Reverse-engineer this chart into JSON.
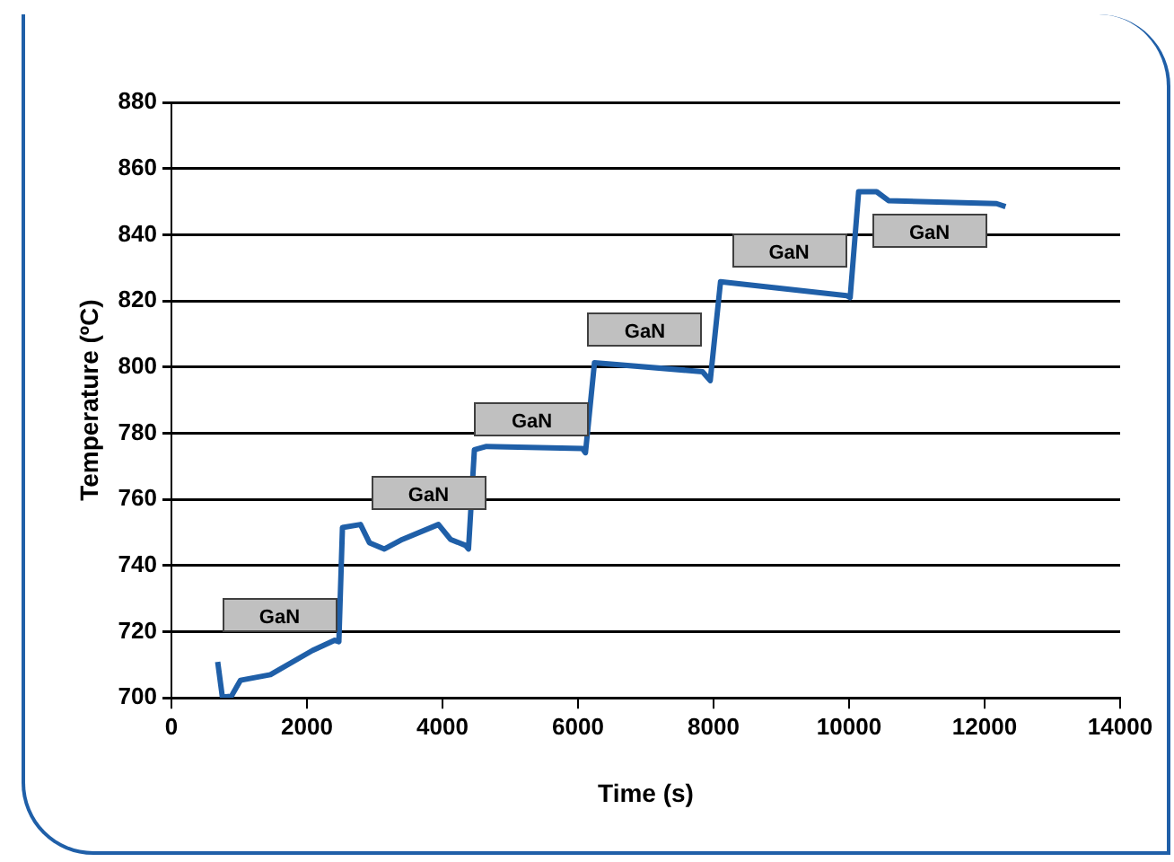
{
  "chart_data": {
    "type": "line",
    "xlabel": "Time (s)",
    "ylabel": "Temperature (ºC)",
    "xlim": [
      0,
      14000
    ],
    "xticks": [
      0,
      2000,
      4000,
      6000,
      8000,
      10000,
      12000,
      14000
    ],
    "ylim": [
      700,
      880
    ],
    "yticks": [
      700,
      720,
      740,
      760,
      780,
      800,
      820,
      840,
      860,
      880
    ],
    "grid": "y",
    "legend": false,
    "marker": "none",
    "line_style": "solid",
    "series": [
      {
        "color": "#1f5fa8",
        "x": [
          683,
          752,
          885,
          1018,
          1461,
          2080,
          2410,
          2471,
          2524,
          2790,
          2922,
          3143,
          3409,
          3940,
          4118,
          4339,
          4384,
          4471,
          4649,
          6065,
          6110,
          6243,
          7837,
          7951,
          8103,
          9963,
          10016,
          10141,
          10406,
          10582,
          12176,
          12309
        ],
        "values": [
          710.9,
          700.2,
          700.5,
          705.3,
          707,
          714.3,
          717.4,
          717,
          751.5,
          752.4,
          746.9,
          745,
          747.9,
          752.4,
          747.9,
          746.1,
          745,
          775,
          776,
          775.4,
          774.1,
          801.3,
          798.6,
          795.9,
          825.8,
          821.6,
          821,
          853,
          853,
          850.3,
          849.4,
          848.5
        ]
      }
    ],
    "annotations": [
      "GaN",
      "GaN",
      "GaN",
      "GaN",
      "GaN",
      "GaN"
    ]
  }
}
